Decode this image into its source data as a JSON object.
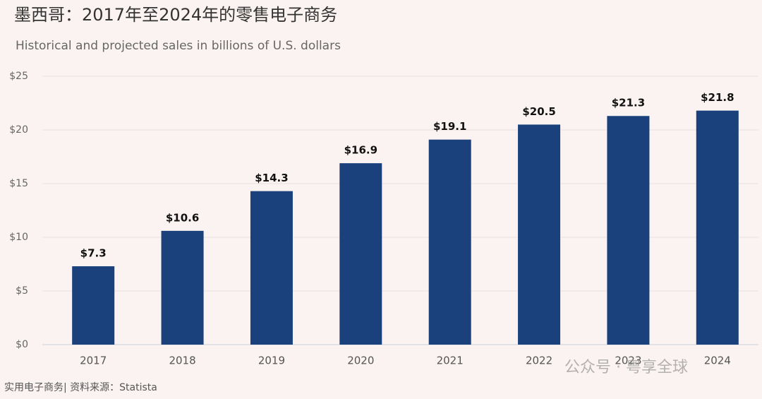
{
  "chart_data": {
    "type": "bar",
    "title": "墨西哥：2017年至2024年的零售电子商务",
    "subtitle": "Historical and projected sales in billions of U.S. dollars",
    "categories": [
      "2017",
      "2018",
      "2019",
      "2020",
      "2021",
      "2022",
      "2023",
      "2024"
    ],
    "values": [
      7.3,
      10.6,
      14.3,
      16.9,
      19.1,
      20.5,
      21.3,
      21.8
    ],
    "value_labels": [
      "$7.3",
      "$10.6",
      "$14.3",
      "$16.9",
      "$19.1",
      "$20.5",
      "$21.3",
      "$21.8"
    ],
    "color": "#1b417d",
    "ylim": [
      0,
      25
    ],
    "yticks": [
      {
        "value": 0,
        "label": "$0"
      },
      {
        "value": 5,
        "label": "$5"
      },
      {
        "value": 10,
        "label": "$10"
      },
      {
        "value": 15,
        "label": "$15"
      },
      {
        "value": 20,
        "label": "$20"
      },
      {
        "value": 25,
        "label": "$25"
      }
    ],
    "grid": true,
    "source": "实用电子商务| 资料来源：Statista",
    "watermark": "公众号 · 粤享全球"
  }
}
